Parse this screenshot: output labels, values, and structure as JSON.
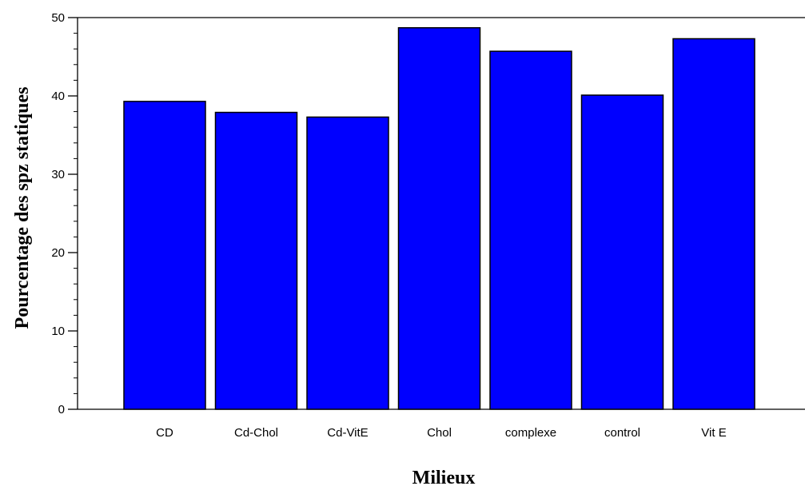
{
  "chart_data": {
    "type": "bar",
    "categories": [
      "CD",
      "Cd-Chol",
      "Cd-VitE",
      "Chol",
      "complexe",
      "control",
      "Vit E"
    ],
    "values": [
      39.3,
      37.9,
      37.3,
      48.7,
      45.7,
      40.1,
      47.3
    ],
    "xlabel": "Milieux",
    "ylabel": "Pourcentage des spz statiques",
    "ylim": [
      0,
      50
    ],
    "yticks": [
      0,
      10,
      20,
      30,
      40,
      50
    ],
    "grid": false,
    "bar_color": "#0000ff",
    "bar_edge_color": "#000000"
  }
}
